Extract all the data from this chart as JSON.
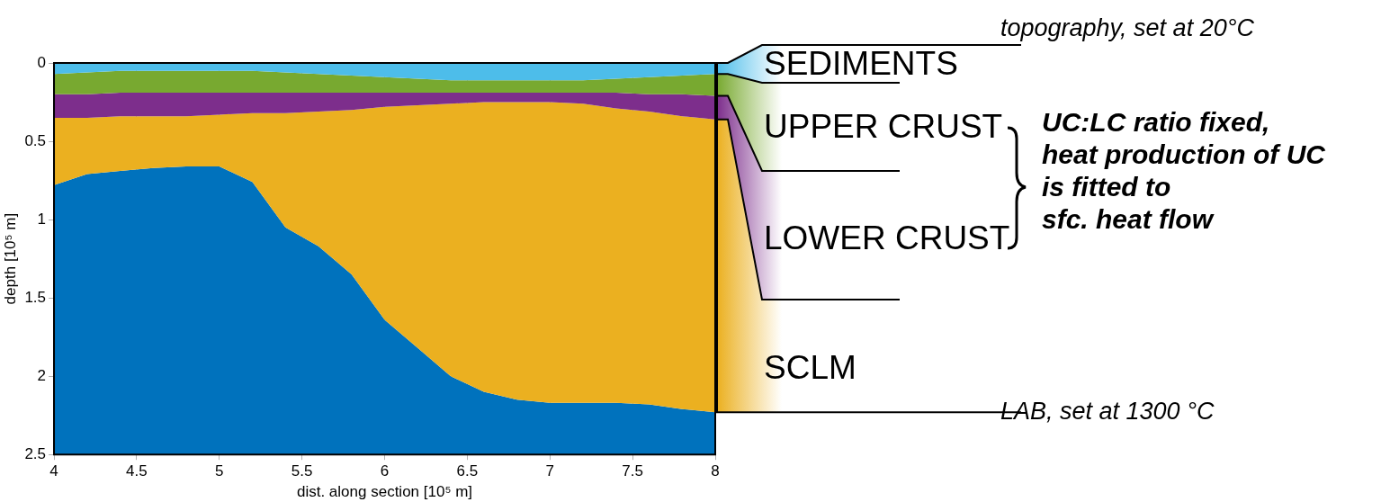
{
  "chart_data": {
    "type": "area",
    "stacked": true,
    "xlabel": "dist. along section [10⁵ m]",
    "ylabel": "depth [10⁵ m]",
    "x": [
      4.0,
      4.2,
      4.4,
      4.6,
      4.8,
      5.0,
      5.2,
      5.4,
      5.6,
      5.8,
      6.0,
      6.2,
      6.4,
      6.6,
      6.8,
      7.0,
      7.2,
      7.4,
      7.6,
      7.8,
      8.0
    ],
    "series": [
      {
        "name": "SEDIMENTS",
        "color": "#4dbdea",
        "values": [
          0.07,
          0.06,
          0.05,
          0.05,
          0.05,
          0.05,
          0.05,
          0.06,
          0.07,
          0.08,
          0.09,
          0.1,
          0.11,
          0.11,
          0.11,
          0.11,
          0.11,
          0.1,
          0.09,
          0.08,
          0.07
        ]
      },
      {
        "name": "UPPER CRUST",
        "color": "#78a930",
        "values": [
          0.13,
          0.14,
          0.14,
          0.14,
          0.14,
          0.14,
          0.14,
          0.13,
          0.12,
          0.11,
          0.1,
          0.09,
          0.08,
          0.08,
          0.08,
          0.08,
          0.08,
          0.09,
          0.11,
          0.12,
          0.14
        ]
      },
      {
        "name": "LOWER CRUST",
        "color": "#7d2e8c",
        "values": [
          0.15,
          0.15,
          0.15,
          0.15,
          0.15,
          0.14,
          0.13,
          0.13,
          0.12,
          0.11,
          0.09,
          0.08,
          0.07,
          0.06,
          0.06,
          0.06,
          0.07,
          0.1,
          0.11,
          0.14,
          0.15
        ]
      },
      {
        "name": "SCLM",
        "color": "#ebb020",
        "values": [
          0.43,
          0.36,
          0.35,
          0.33,
          0.32,
          0.33,
          0.44,
          0.73,
          0.86,
          1.05,
          1.36,
          1.55,
          1.74,
          1.85,
          1.9,
          1.92,
          1.91,
          1.88,
          1.87,
          1.87,
          1.87
        ]
      },
      {
        "color": "#0072bd",
        "values": [
          1.72,
          1.79,
          1.81,
          1.83,
          1.84,
          1.84,
          1.74,
          1.45,
          1.33,
          1.15,
          0.86,
          0.68,
          0.5,
          0.4,
          0.35,
          0.33,
          0.33,
          0.33,
          0.32,
          0.29,
          0.27
        ]
      }
    ],
    "xlim": [
      4,
      8
    ],
    "xticks": [
      4,
      4.5,
      5,
      5.5,
      6,
      6.5,
      7,
      7.5,
      8
    ],
    "ylim": [
      2.5,
      0
    ],
    "yticks": [
      0,
      0.5,
      1,
      1.5,
      2,
      2.5
    ],
    "grid": true,
    "annotations": [
      "topography, set at 20°C",
      "UC:LC ratio fixed,\nheat production of UC\nis fitted to\nsfc. heat flow",
      "LAB, set at 1300 °C"
    ]
  }
}
